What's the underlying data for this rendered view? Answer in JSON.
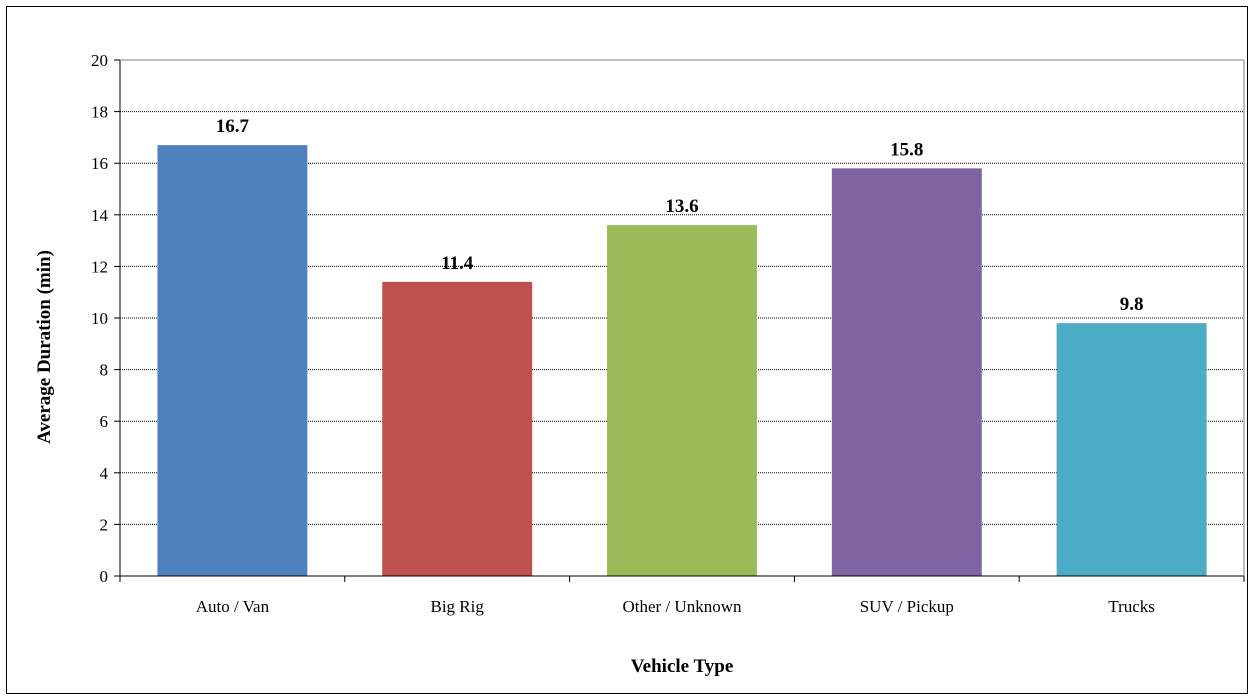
{
  "chart_data": {
    "type": "bar",
    "title": "",
    "xlabel": "Vehicle Type",
    "ylabel": "Average Duration (min)",
    "categories": [
      "Auto / Van",
      "Big Rig",
      "Other / Unknown",
      "SUV / Pickup",
      "Trucks"
    ],
    "values": [
      16.7,
      11.4,
      13.6,
      15.8,
      9.8
    ],
    "value_labels": [
      "16.7",
      "11.4",
      "13.6",
      "15.8",
      "9.8"
    ],
    "bar_colors": [
      "#4F81BD",
      "#C0504D",
      "#9BBB59",
      "#8064A2",
      "#4BACC6"
    ],
    "ylim": [
      0,
      20
    ],
    "yticks": [
      0,
      2,
      4,
      6,
      8,
      10,
      12,
      14,
      16,
      18,
      20
    ],
    "grid": true,
    "legend": "none"
  }
}
